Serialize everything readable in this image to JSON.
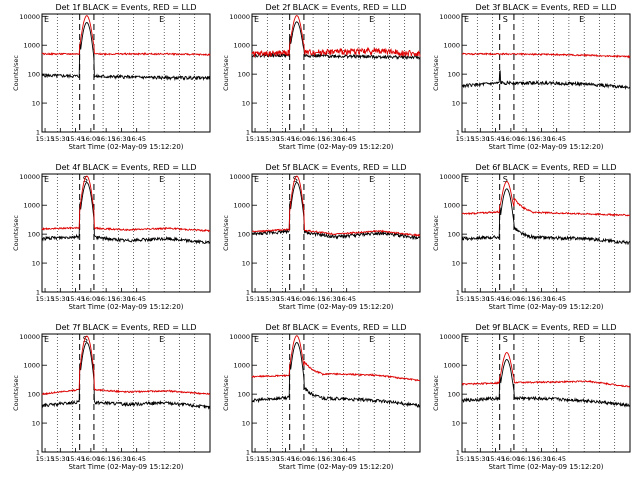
{
  "chart_data": {
    "type": "line",
    "xlabel": "Start Time (02-May-09 15:12:20)",
    "ylabel": "Counts/sec",
    "x_ticks": [
      "15:15",
      "15:30",
      "15:45",
      "16:00",
      "16:15",
      "16:30",
      "16:45"
    ],
    "y_ticks": [
      "1",
      "10",
      "100",
      "1000",
      "10000"
    ],
    "x_range_min": [
      15,
      180
    ],
    "y_range": [
      1,
      12000
    ],
    "y_scale": "log",
    "markers": {
      "E": "E",
      "S": "S"
    },
    "series_colors": {
      "events": "#000000",
      "lld": "#dd0000"
    },
    "panels": [
      {
        "title": "Det 1f BLACK = Events, RED = LLD",
        "lld": [
          500,
          500,
          500,
          500,
          470
        ],
        "events": [
          90,
          85,
          80,
          75,
          75
        ],
        "peak": 10000,
        "peak_end": 88,
        "red_noise": 0,
        "s_marker": false,
        "slow_tail": false
      },
      {
        "title": "Det 2f BLACK = Events, RED = LLD",
        "lld": [
          500,
          550,
          600,
          650,
          500
        ],
        "events": [
          450,
          450,
          420,
          400,
          380
        ],
        "peak": 10000,
        "peak_end": 88,
        "red_noise": 0.35,
        "s_marker": false,
        "slow_tail": false
      },
      {
        "title": "Det 3f BLACK = Events, RED = LLD",
        "lld": [
          500,
          500,
          480,
          450,
          400
        ],
        "events": [
          40,
          50,
          50,
          45,
          35
        ],
        "peak": 0,
        "peak_end": 0,
        "red_noise": 0,
        "s_marker": true,
        "slow_tail": false
      },
      {
        "title": "Det 4f BLACK = Events, RED = LLD",
        "lld": [
          150,
          170,
          140,
          160,
          130
        ],
        "events": [
          70,
          85,
          60,
          70,
          50
        ],
        "peak": 10000,
        "peak_end": 85,
        "red_noise": 0,
        "s_marker": true,
        "slow_tail": false
      },
      {
        "title": "Det 5f BLACK = Events, RED = LLD",
        "lld": [
          120,
          150,
          100,
          130,
          90
        ],
        "events": [
          100,
          130,
          80,
          110,
          75
        ],
        "peak": 10000,
        "peak_end": 85,
        "red_noise": 0,
        "s_marker": true,
        "slow_tail": false
      },
      {
        "title": "Det 6f BLACK = Events, RED = LLD",
        "lld": [
          500,
          600,
          550,
          500,
          450
        ],
        "events": [
          70,
          80,
          75,
          70,
          50
        ],
        "peak": 6000,
        "peak_end": 105,
        "red_noise": 0,
        "s_marker": true,
        "slow_tail": true
      },
      {
        "title": "Det 7f BLACK = Events, RED = LLD",
        "lld": [
          100,
          150,
          120,
          130,
          100
        ],
        "events": [
          40,
          55,
          45,
          50,
          35
        ],
        "peak": 10000,
        "peak_end": 85,
        "red_noise": 0,
        "s_marker": true,
        "slow_tail": false
      },
      {
        "title": "Det 8f BLACK = Events, RED = LLD",
        "lld": [
          400,
          450,
          500,
          450,
          300
        ],
        "events": [
          60,
          80,
          70,
          60,
          40
        ],
        "peak": 10000,
        "peak_end": 88,
        "red_noise": 0,
        "s_marker": false,
        "slow_tail": true
      },
      {
        "title": "Det 9f BLACK = Events, RED = LLD",
        "lld": [
          220,
          250,
          260,
          280,
          180
        ],
        "events": [
          60,
          75,
          70,
          60,
          40
        ],
        "peak": 2500,
        "peak_end": 0,
        "red_noise": 0,
        "s_marker": true,
        "slow_tail": false
      }
    ]
  }
}
